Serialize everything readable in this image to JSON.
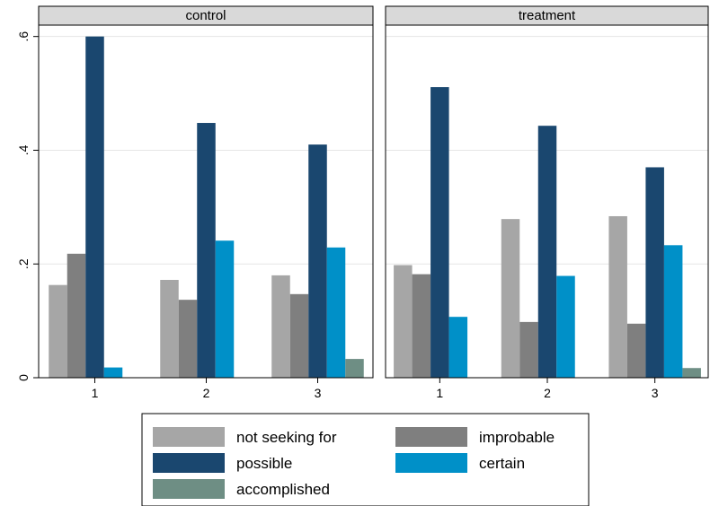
{
  "chart_data": {
    "type": "bar",
    "facet_by": [
      "control",
      "treatment"
    ],
    "categories": [
      "1",
      "2",
      "3"
    ],
    "ylim": [
      0,
      0.62
    ],
    "yticks": [
      {
        "value": 0,
        "label": "0"
      },
      {
        "value": 0.2,
        "label": ".2"
      },
      {
        "value": 0.4,
        "label": ".4"
      },
      {
        "value": 0.6,
        "label": ".6"
      }
    ],
    "grid": true,
    "legend_position": "bottom",
    "series": [
      {
        "name": "not seeking for",
        "color": "#a6a6a6"
      },
      {
        "name": "improbable",
        "color": "#7f7f7f"
      },
      {
        "name": "possible",
        "color": "#1a476f"
      },
      {
        "name": "certain",
        "color": "#0090c8"
      },
      {
        "name": "accomplished",
        "color": "#6e8e84"
      }
    ],
    "panels": [
      {
        "title": "control",
        "values": [
          [
            0.163,
            0.218,
            0.6,
            0.018,
            0.0
          ],
          [
            0.172,
            0.137,
            0.448,
            0.241,
            0.0
          ],
          [
            0.18,
            0.147,
            0.41,
            0.229,
            0.033
          ]
        ]
      },
      {
        "title": "treatment",
        "values": [
          [
            0.198,
            0.182,
            0.511,
            0.107,
            0.0
          ],
          [
            0.279,
            0.098,
            0.443,
            0.179,
            0.0
          ],
          [
            0.284,
            0.095,
            0.37,
            0.233,
            0.017
          ]
        ]
      }
    ]
  }
}
